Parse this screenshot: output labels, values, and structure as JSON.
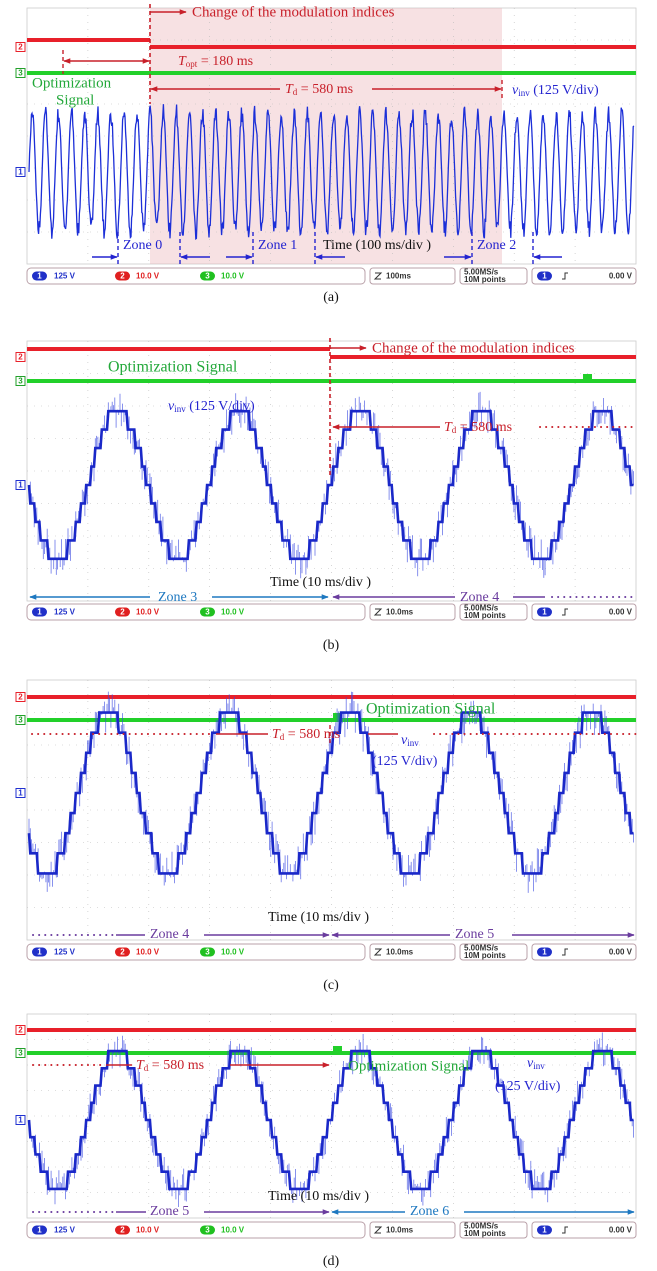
{
  "channels": [
    "1",
    "2",
    "3"
  ],
  "panels": [
    {
      "label": "(a)",
      "change": "Change of the modulation indices",
      "topt": {
        "symbol": "T",
        "sub": "opt",
        "text": " = 180 ms"
      },
      "optimization": [
        "Optimization",
        "Signal"
      ],
      "td": {
        "symbol": "T",
        "sub": "d",
        "text": " = 580 ms"
      },
      "vinv": {
        "symbol": "v",
        "sub": "inv",
        "text": " (125 V/div)"
      },
      "time": "Time (100 ms/div )",
      "zones": [
        "Zone 0",
        "Zone 1",
        "Zone 2"
      ],
      "status": {
        "ch1": "125 V",
        "ch2": "10.0 V",
        "ch3": "10.0 V",
        "timebase": "100ms",
        "rate": "5.00MS/s",
        "points": "10M points",
        "trigger": "0.00 V"
      }
    },
    {
      "label": "(b)",
      "change": "Change of the modulation indices",
      "optimization": [
        "Optimization Signal"
      ],
      "td": {
        "symbol": "T",
        "sub": "d",
        "text": " = 580 ms"
      },
      "vinv": {
        "symbol": "v",
        "sub": "inv",
        "text": " (125 V/div)"
      },
      "time": "Time (10 ms/div )",
      "zones": [
        "Zone 3",
        "Zone 4"
      ],
      "status": {
        "ch1": "125 V",
        "ch2": "10.0 V",
        "ch3": "10.0 V",
        "timebase": "10.0ms",
        "rate": "5.00MS/s",
        "points": "10M points",
        "trigger": "0.00 V"
      }
    },
    {
      "label": "(c)",
      "optimization": [
        "Optimization Signal"
      ],
      "td": {
        "symbol": "T",
        "sub": "d",
        "text": " = 580 ms"
      },
      "vinv": {
        "symbol": "v",
        "sub": "inv",
        "text": "(125 V/div)"
      },
      "time": "Time (10 ms/div )",
      "zones": [
        "Zone 4",
        "Zone 5"
      ],
      "status": {
        "ch1": "125 V",
        "ch2": "10.0 V",
        "ch3": "10.0 V",
        "timebase": "10.0ms",
        "rate": "5.00MS/s",
        "points": "10M points",
        "trigger": "0.00 V"
      }
    },
    {
      "label": "(d)",
      "optimization": [
        "Optimization Signal"
      ],
      "td": {
        "symbol": "T",
        "sub": "d",
        "text": " = 580 ms"
      },
      "vinv": {
        "symbol": "v",
        "sub": "inv",
        "text": "(125 V/div)"
      },
      "time": "Time (10 ms/div )",
      "zones": [
        "Zone 5",
        "Zone 6"
      ],
      "status": {
        "ch1": "125 V",
        "ch2": "10.0 V",
        "ch3": "10.0 V",
        "timebase": "10.0ms",
        "rate": "5.00MS/s",
        "points": "10M points",
        "trigger": "0.00 V"
      }
    }
  ]
}
